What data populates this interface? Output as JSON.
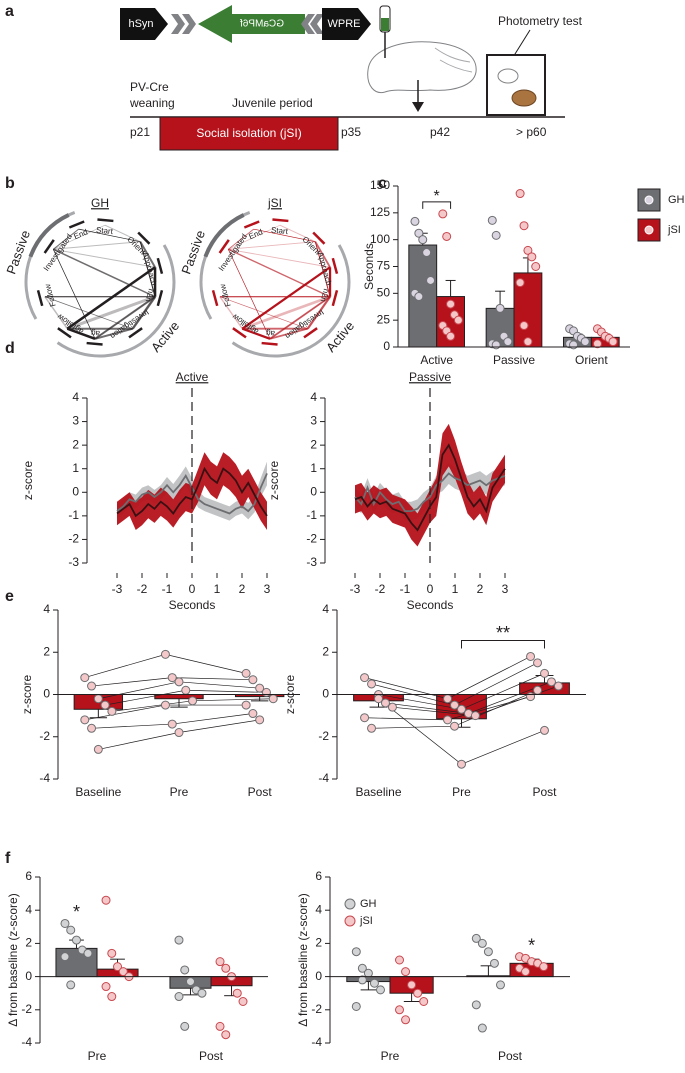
{
  "panels": [
    "a",
    "b",
    "c",
    "d",
    "e",
    "f"
  ],
  "construct": {
    "promoter": "hSyn",
    "gene": "GCaMP6f",
    "element": "WPRE"
  },
  "timeline": {
    "strain": "PV-Cre",
    "weaning": "weaning",
    "period": "Juvenile period",
    "isolation": "Social isolation (jSI)",
    "photometry": "Photometry test",
    "days": [
      "p21",
      "p35",
      "p42",
      "> p60"
    ]
  },
  "networks": [
    {
      "title": "GH",
      "color": "#231f20"
    },
    {
      "title": "jSI",
      "color": "#b5121b"
    }
  ],
  "network_nodes": [
    "Start",
    "Orient",
    "Approach",
    "n2n",
    "Investigation",
    "ag",
    "agfollow",
    "Follow",
    "Investigated",
    "End"
  ],
  "network_groups": [
    "Passive",
    "Active"
  ],
  "chart_data": [
    {
      "type": "bar",
      "ylabel": "Seconds",
      "categories": [
        "Active",
        "Passive",
        "Orient"
      ],
      "ylim": [
        0,
        150
      ],
      "yticks": [
        0,
        25,
        50,
        75,
        100,
        125,
        150
      ],
      "legend": "right",
      "legend_marker": "square",
      "series": [
        {
          "name": "GH",
          "color": "#6d6e71",
          "point_color": "#d9d4e0",
          "values": [
            95,
            36,
            9
          ],
          "errors": [
            11,
            16,
            3
          ],
          "points": [
            [
              117,
              106,
              100,
              88,
              62,
              50,
              47
            ],
            [
              118,
              104,
              36,
              10,
              5,
              3,
              2
            ],
            [
              17,
              15,
              10,
              8,
              5,
              3,
              2
            ]
          ]
        },
        {
          "name": "jSI",
          "color": "#b5121b",
          "point_color": "#f4c7c9",
          "values": [
            47,
            69,
            9
          ],
          "errors": [
            15,
            14,
            3
          ],
          "points": [
            [
              124,
              103,
              40,
              30,
              25,
              20,
              15,
              10
            ],
            [
              143,
              113,
              90,
              84,
              75,
              60,
              20,
              5
            ],
            [
              17,
              14,
              10,
              8,
              5,
              3
            ]
          ]
        }
      ],
      "annotations": [
        {
          "text": "*",
          "category": 0
        }
      ]
    },
    {
      "type": "line",
      "title": "Active",
      "xlabel": "Seconds",
      "ylabel": "z-score",
      "x": [
        -3,
        -2.75,
        -2.5,
        -2.25,
        -2,
        -1.75,
        -1.5,
        -1.25,
        -1,
        -0.75,
        -0.5,
        -0.25,
        0,
        0.25,
        0.5,
        0.75,
        1,
        1.25,
        1.5,
        1.75,
        2,
        2.25,
        2.5,
        2.75,
        3
      ],
      "xlim": [
        -4.2,
        3.4
      ],
      "xticks": [
        -3,
        -2,
        -1,
        0,
        1,
        2,
        3
      ],
      "ylim": [
        -3,
        4
      ],
      "yticks": [
        -3,
        -2,
        -1,
        0,
        1,
        2,
        3,
        4
      ],
      "series": [
        {
          "color": "#a7a9ac",
          "line_color": "#6d6e71",
          "values": [
            -0.8,
            -0.6,
            -0.3,
            -0.4,
            -0.1,
            0.0,
            -0.2,
            0.0,
            0.3,
            0.0,
            0.3,
            0.7,
            0.2,
            -0.3,
            -0.5,
            -0.6,
            -0.7,
            -0.8,
            -0.9,
            -0.7,
            -0.6,
            -0.8,
            -0.5,
            0.2,
            0.8
          ],
          "errors": [
            0.3,
            0.3,
            0.3,
            0.3,
            0.3,
            0.3,
            0.3,
            0.3,
            0.35,
            0.35,
            0.4,
            0.4,
            0.4,
            0.35,
            0.3,
            0.3,
            0.3,
            0.3,
            0.3,
            0.3,
            0.3,
            0.35,
            0.35,
            0.4,
            0.5
          ]
        },
        {
          "color": "#b5121b",
          "line_color": "#3b1012",
          "values": [
            -0.9,
            -0.7,
            -0.5,
            -1.0,
            -0.8,
            -0.5,
            -0.7,
            -0.4,
            -0.6,
            -0.9,
            -0.5,
            -0.2,
            -0.3,
            0.3,
            1.0,
            0.6,
            0.4,
            1.0,
            0.8,
            0.5,
            0.0,
            0.4,
            -0.1,
            -0.6,
            -1.0
          ],
          "errors": [
            0.5,
            0.5,
            0.5,
            0.6,
            0.6,
            0.6,
            0.6,
            0.6,
            0.6,
            0.6,
            0.6,
            0.6,
            0.6,
            0.7,
            0.7,
            0.7,
            0.7,
            0.7,
            0.7,
            0.7,
            0.7,
            0.6,
            0.6,
            0.6,
            0.6
          ]
        }
      ]
    },
    {
      "type": "line",
      "title": "Passive",
      "xlabel": "Seconds",
      "ylabel": "z-score",
      "x": [
        -3,
        -2.75,
        -2.5,
        -2.25,
        -2,
        -1.75,
        -1.5,
        -1.25,
        -1,
        -0.75,
        -0.5,
        -0.25,
        0,
        0.25,
        0.5,
        0.75,
        1,
        1.25,
        1.5,
        1.75,
        2,
        2.25,
        2.5,
        2.75,
        3
      ],
      "xlim": [
        -4.2,
        3.4
      ],
      "xticks": [
        -3,
        -2,
        -1,
        0,
        1,
        2,
        3
      ],
      "ylim": [
        -3,
        4
      ],
      "yticks": [
        -3,
        -2,
        -1,
        0,
        1,
        2,
        3,
        4
      ],
      "series": [
        {
          "color": "#a7a9ac",
          "line_color": "#6d6e71",
          "values": [
            -0.2,
            -0.5,
            0.2,
            -0.5,
            0.0,
            -0.3,
            -0.5,
            -0.4,
            -0.8,
            -0.8,
            -0.7,
            -0.4,
            -0.2,
            0.3,
            0.5,
            0.8,
            0.6,
            0.5,
            0.3,
            0.4,
            0.5,
            0.3,
            0.5,
            0.6,
            0.7
          ],
          "errors": [
            0.4,
            0.4,
            0.4,
            0.4,
            0.4,
            0.4,
            0.4,
            0.4,
            0.4,
            0.4,
            0.4,
            0.4,
            0.4,
            0.4,
            0.45,
            0.45,
            0.45,
            0.45,
            0.4,
            0.4,
            0.4,
            0.4,
            0.4,
            0.4,
            0.4
          ]
        },
        {
          "color": "#b5121b",
          "line_color": "#3b1012",
          "values": [
            -0.3,
            -0.2,
            -0.6,
            -0.3,
            -0.5,
            -0.4,
            -0.7,
            -0.8,
            -0.9,
            -1.3,
            -1.6,
            -1.1,
            -0.6,
            -0.2,
            1.6,
            2.0,
            1.4,
            0.6,
            -0.2,
            -0.6,
            -0.3,
            -0.8,
            0.2,
            0.6,
            1.0
          ],
          "errors": [
            0.6,
            0.6,
            0.6,
            0.6,
            0.6,
            0.6,
            0.6,
            0.6,
            0.6,
            0.7,
            0.7,
            0.7,
            0.7,
            0.8,
            0.9,
            0.9,
            0.8,
            0.7,
            0.7,
            0.6,
            0.6,
            0.6,
            0.6,
            0.6,
            0.6
          ]
        }
      ]
    },
    {
      "type": "bar",
      "ylabel": "z-score",
      "categories": [
        "Baseline",
        "Pre",
        "Post"
      ],
      "ylim": [
        -4,
        4
      ],
      "yticks": [
        -4,
        -2,
        0,
        2,
        4
      ],
      "paired": true,
      "series": [
        {
          "color": "#b5121b",
          "point_color": "#f4c7c9",
          "values": [
            -0.7,
            -0.2,
            -0.1
          ],
          "errors": [
            0.4,
            0.4,
            0.2
          ],
          "points": [
            [
              0.8,
              0.4,
              -0.2,
              -0.5,
              -0.8,
              -1.2,
              -1.6,
              -2.6
            ],
            [
              1.9,
              0.8,
              0.6,
              0.2,
              -0.3,
              -0.5,
              -1.4,
              -1.8
            ],
            [
              1.0,
              0.7,
              0.3,
              0.1,
              -0.2,
              -0.5,
              -0.9,
              -1.2
            ]
          ]
        }
      ]
    },
    {
      "type": "bar",
      "ylabel": "z-score",
      "categories": [
        "Baseline",
        "Pre",
        "Post"
      ],
      "ylim": [
        -4,
        4
      ],
      "yticks": [
        -4,
        -2,
        0,
        2,
        4
      ],
      "paired": true,
      "series": [
        {
          "color": "#b5121b",
          "point_color": "#f4c7c9",
          "values": [
            -0.3,
            -1.15,
            0.55
          ],
          "errors": [
            0.3,
            0.4,
            0.35
          ],
          "points": [
            [
              0.8,
              0.5,
              0.0,
              -0.4,
              -0.6,
              -1.1,
              -1.6,
              -0.2
            ],
            [
              -0.2,
              -0.5,
              -0.7,
              -0.9,
              -1.0,
              -1.2,
              -1.5,
              -3.3
            ],
            [
              1.8,
              1.5,
              1.0,
              0.6,
              0.4,
              -0.1,
              0.2,
              -1.7
            ]
          ]
        }
      ],
      "annotations": [
        {
          "text": "**",
          "categories": [
            1,
            2
          ]
        }
      ]
    },
    {
      "type": "bar",
      "ylabel": "Δ from baseline (z-score)",
      "categories": [
        "Pre",
        "Post"
      ],
      "ylim": [
        -4,
        6
      ],
      "yticks": [
        -4,
        -2,
        0,
        2,
        4,
        6
      ],
      "series": [
        {
          "color": "#6d6e71",
          "point_color": "#d1d3d4",
          "values": [
            1.7,
            -0.7
          ],
          "errors": [
            0.5,
            0.4
          ],
          "points": [
            [
              3.2,
              2.8,
              2.2,
              1.6,
              1.4,
              1.2,
              -0.5
            ],
            [
              2.2,
              0.4,
              -0.3,
              -0.8,
              -1.0,
              -1.2,
              -3.0
            ]
          ]
        },
        {
          "color": "#b5121b",
          "point_color": "#f4c7c9",
          "values": [
            0.45,
            -0.55
          ],
          "errors": [
            0.6,
            0.6
          ],
          "points": [
            [
              4.6,
              1.4,
              0.6,
              0.3,
              0.0,
              -0.6,
              -1.2
            ],
            [
              0.9,
              0.5,
              0.0,
              -1.0,
              -1.5,
              -3.0,
              -3.5
            ]
          ]
        }
      ],
      "annotations": [
        {
          "text": "*",
          "series": 0,
          "category": 0
        }
      ]
    },
    {
      "type": "bar",
      "ylabel": "Δ from baseline (z-score)",
      "categories": [
        "Pre",
        "Post"
      ],
      "ylim": [
        -4,
        6
      ],
      "yticks": [
        -4,
        -2,
        0,
        2,
        4,
        6
      ],
      "legend": "top-left",
      "legend_marker": "circle",
      "series": [
        {
          "name": "GH",
          "color": "#6d6e71",
          "point_color": "#d1d3d4",
          "values": [
            -0.3,
            0.05
          ],
          "errors": [
            0.5,
            0.6
          ],
          "points": [
            [
              1.5,
              0.5,
              0.2,
              -0.4,
              -0.8,
              -1.8,
              -0.2
            ],
            [
              2.3,
              2.0,
              1.5,
              0.8,
              -0.5,
              -1.7,
              -3.1
            ]
          ]
        },
        {
          "name": "jSI",
          "color": "#b5121b",
          "point_color": "#f4c7c9",
          "values": [
            -1.0,
            0.8
          ],
          "errors": [
            0.5,
            0.25
          ],
          "points": [
            [
              1.0,
              0.3,
              -0.5,
              -1.0,
              -1.5,
              -2.0,
              -2.6
            ],
            [
              1.2,
              1.1,
              0.9,
              0.8,
              0.6,
              0.5,
              0.3
            ]
          ]
        }
      ],
      "annotations": [
        {
          "text": "*",
          "series": 1,
          "category": 1
        }
      ]
    }
  ]
}
